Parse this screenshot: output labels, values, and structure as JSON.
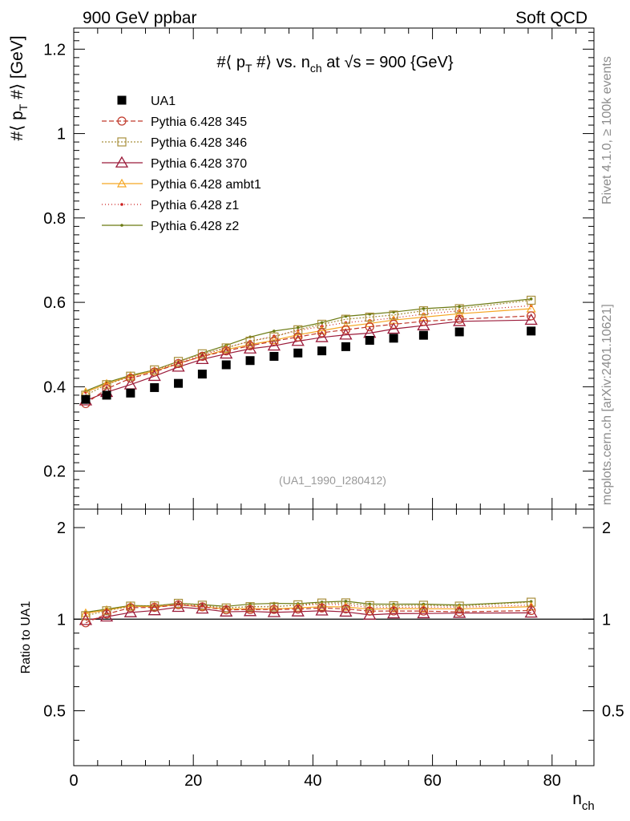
{
  "header": {
    "left": "900 GeV ppbar",
    "right": "Soft QCD"
  },
  "side_labels": {
    "rivet": "Rivet 4.1.0, ≥ 100k events",
    "mcplots": "mcplots.cern.ch [arXiv:2401.10621]"
  },
  "chart_data": [
    {
      "type": "scatter",
      "panel": "main",
      "title": "#⟨ p_T #⟩ vs. n_ch at √s = 900 {GeV}",
      "title_parts": {
        "a": "#⟨ p",
        "a_sub": "T",
        "b": " #⟩ vs. n",
        "b_sub": "ch",
        "c": " at √s = 900 {GeV}"
      },
      "ylabel": "#⟨ p_T #⟩ [GeV]",
      "ylabel_parts": {
        "a": "#⟨ p",
        "a_sub": "T",
        "b": " #⟩ [GeV]"
      },
      "xlim": [
        0,
        87
      ],
      "ylim": [
        0.11,
        1.25
      ],
      "yticks": [
        0.2,
        0.4,
        0.6,
        0.8,
        1,
        1.2
      ],
      "ytick_labels": [
        "0.2",
        "0.4",
        "0.6",
        "0.8",
        "1",
        "1.2"
      ],
      "watermark": "(UA1_1990_I280412)",
      "x": [
        2,
        5.5,
        9.5,
        13.5,
        17.5,
        21.5,
        25.5,
        29.5,
        33.5,
        37.5,
        41.5,
        45.5,
        49.5,
        53.5,
        58.5,
        64.5,
        76.5
      ],
      "series": [
        {
          "name": "UA1",
          "key": "ua1",
          "color": "#000000",
          "dash": "",
          "marker": "square",
          "values": [
            0.37,
            0.38,
            0.385,
            0.398,
            0.408,
            0.43,
            0.452,
            0.462,
            0.472,
            0.48,
            0.485,
            0.495,
            0.51,
            0.515,
            0.522,
            0.53,
            0.532
          ]
        },
        {
          "name": "Pythia 6.428 345",
          "key": "p345",
          "color": "#c0392b",
          "dash": "6,3",
          "marker": "circle",
          "values": [
            0.36,
            0.395,
            0.42,
            0.435,
            0.455,
            0.472,
            0.485,
            0.497,
            0.508,
            0.518,
            0.528,
            0.535,
            0.542,
            0.548,
            0.555,
            0.56,
            0.568
          ]
        },
        {
          "name": "Pythia 6.428 346",
          "key": "p346",
          "color": "#a88f3c",
          "dash": "2,2",
          "marker": "square-open",
          "values": [
            0.38,
            0.405,
            0.425,
            0.44,
            0.46,
            0.478,
            0.492,
            0.508,
            0.518,
            0.535,
            0.548,
            0.56,
            0.565,
            0.57,
            0.58,
            0.585,
            0.605
          ]
        },
        {
          "name": "Pythia 6.428 370",
          "key": "p370",
          "color": "#9b1b3a",
          "dash": "",
          "marker": "triangle-open",
          "values": [
            0.367,
            0.387,
            0.405,
            0.425,
            0.447,
            0.465,
            0.478,
            0.49,
            0.497,
            0.508,
            0.517,
            0.523,
            0.527,
            0.537,
            0.545,
            0.555,
            0.558
          ]
        },
        {
          "name": "Pythia 6.428 ambt1",
          "key": "ambt1",
          "color": "#f5a623",
          "dash": "",
          "marker": "triangle-open-small",
          "values": [
            0.387,
            0.407,
            0.425,
            0.437,
            0.455,
            0.472,
            0.488,
            0.5,
            0.51,
            0.523,
            0.533,
            0.543,
            0.55,
            0.558,
            0.565,
            0.573,
            0.585
          ]
        },
        {
          "name": "Pythia 6.428 z1",
          "key": "z1",
          "color": "#cc1f1f",
          "dash": "1,3",
          "marker": "dot",
          "values": [
            0.387,
            0.407,
            0.423,
            0.438,
            0.457,
            0.475,
            0.493,
            0.508,
            0.52,
            0.533,
            0.543,
            0.552,
            0.557,
            0.563,
            0.572,
            0.58,
            0.592
          ]
        },
        {
          "name": "Pythia 6.428 z2",
          "key": "z2",
          "color": "#6b7a12",
          "dash": "",
          "marker": "dot",
          "values": [
            0.39,
            0.41,
            0.427,
            0.44,
            0.46,
            0.48,
            0.498,
            0.518,
            0.532,
            0.54,
            0.552,
            0.567,
            0.572,
            0.577,
            0.585,
            0.59,
            0.608
          ]
        }
      ]
    },
    {
      "type": "line",
      "panel": "ratio",
      "ylabel": "Ratio to UA1",
      "xlabel": "n_ch",
      "xlabel_parts": {
        "a": "n",
        "a_sub": "ch"
      },
      "xlim": [
        0,
        87
      ],
      "ylim": [
        0.33,
        2.3
      ],
      "yscale": "log",
      "yticks": [
        0.5,
        1,
        2
      ],
      "ytick_labels": [
        "0.5",
        "1",
        "2"
      ],
      "xticks": [
        0,
        20,
        40,
        60,
        80
      ],
      "xtick_labels": [
        "0",
        "20",
        "40",
        "60",
        "80"
      ],
      "reference_line": 1
    }
  ]
}
